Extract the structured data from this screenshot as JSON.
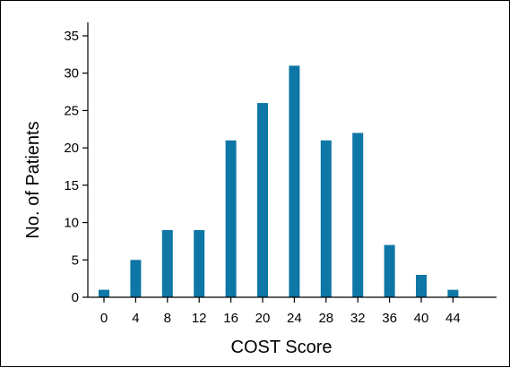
{
  "chart_data": {
    "type": "bar",
    "categories": [
      "0",
      "4",
      "8",
      "12",
      "16",
      "20",
      "24",
      "28",
      "32",
      "36",
      "40",
      "44"
    ],
    "values": [
      1,
      5,
      9,
      9,
      21,
      26,
      31,
      21,
      22,
      7,
      3,
      1
    ],
    "xlabel": "COST Score",
    "ylabel": "No. of Patients",
    "ylim": [
      0,
      35
    ],
    "yticks": [
      "0",
      "5",
      "10",
      "15",
      "20",
      "25",
      "30",
      "35"
    ],
    "grid": false,
    "legend": "none",
    "bar_color": "#0e77a5"
  }
}
